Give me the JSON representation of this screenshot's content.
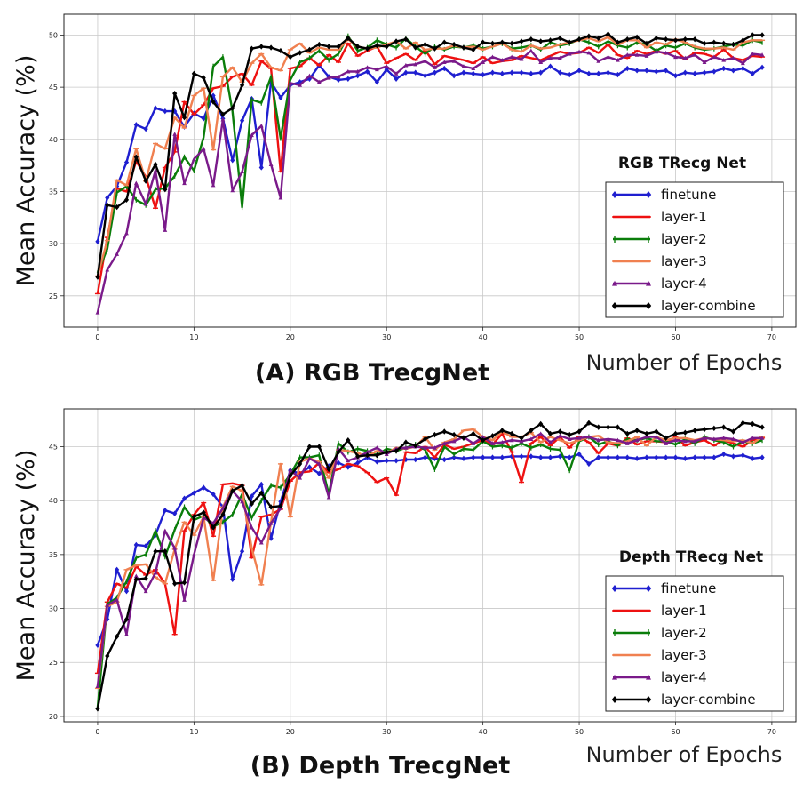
{
  "chart_data": [
    {
      "type": "line",
      "panel_title": "(A) RGB TrecgNet",
      "legend_title": "RGB TRecg Net",
      "ylabel": "Mean Accuracy (%)",
      "xlabel": "Number of Epochs",
      "xlim": [
        -3.5,
        72.5
      ],
      "ylim": [
        22,
        52
      ],
      "xticks": [
        0,
        10,
        20,
        30,
        40,
        50,
        60,
        70
      ],
      "yticks": [
        25,
        30,
        35,
        40,
        45,
        50
      ],
      "grid": true,
      "legend_position": "lower-right",
      "series": [
        {
          "name": "finetune",
          "color": "#1f1fd0",
          "marker": "diamond",
          "values": [
            30.2,
            34.4,
            35.5,
            37.8,
            41.4,
            41.0,
            43.0,
            42.7,
            42.7,
            41.2,
            42.5,
            42.0,
            44.2,
            42.0,
            38.0,
            41.8,
            43.9,
            37.3,
            45.5,
            44.0,
            45.2,
            45.5,
            45.8,
            47.1,
            46.0,
            45.7,
            45.8,
            46.1,
            46.5,
            45.5,
            46.7,
            45.8,
            46.4,
            46.4,
            46.1,
            46.4,
            46.8,
            46.1,
            46.4,
            46.3,
            46.2,
            46.4,
            46.3,
            46.4,
            46.4,
            46.3,
            46.4,
            47.0,
            46.4,
            46.2,
            46.6,
            46.3,
            46.3,
            46.4,
            46.2,
            46.8,
            46.6,
            46.6,
            46.5,
            46.6,
            46.1,
            46.4,
            46.3,
            46.4,
            46.5,
            46.8,
            46.6,
            46.8,
            46.3,
            46.9
          ]
        },
        {
          "name": "layer-1",
          "color": "#ee1111",
          "marker": "hline",
          "values": [
            25.2,
            30.6,
            35.3,
            35.0,
            37.9,
            36.4,
            33.4,
            37.3,
            38.8,
            43.6,
            42.4,
            43.3,
            44.9,
            45.1,
            46.0,
            46.3,
            45.2,
            47.5,
            46.8,
            36.9,
            46.8,
            47.0,
            47.8,
            47.1,
            48.1,
            47.4,
            49.2,
            48.0,
            48.5,
            48.9,
            47.3,
            47.8,
            48.2,
            47.6,
            48.6,
            47.2,
            48.0,
            47.8,
            47.6,
            47.3,
            47.9,
            47.3,
            47.5,
            47.6,
            48.0,
            47.8,
            47.6,
            48.0,
            48.4,
            48.2,
            48.3,
            48.8,
            48.3,
            49.1,
            48.1,
            47.8,
            48.5,
            48.2,
            48.5,
            48.2,
            48.5,
            47.7,
            48.3,
            48.2,
            47.9,
            48.6,
            47.8,
            47.6,
            48.0,
            47.9
          ]
        },
        {
          "name": "layer-2",
          "color": "#0a7d0a",
          "marker": "vline",
          "values": [
            27.2,
            29.5,
            34.9,
            35.5,
            34.2,
            33.7,
            35.2,
            35.3,
            36.5,
            38.3,
            37.0,
            40.2,
            47.0,
            47.9,
            42.7,
            33.5,
            43.8,
            43.5,
            46.0,
            40.1,
            45.7,
            47.4,
            47.8,
            48.5,
            47.6,
            48.2,
            49.9,
            48.5,
            48.8,
            49.5,
            49.1,
            48.8,
            49.7,
            48.9,
            48.2,
            48.9,
            48.6,
            48.9,
            48.8,
            49.0,
            48.7,
            48.9,
            49.2,
            48.7,
            48.8,
            49.0,
            48.6,
            49.3,
            49.0,
            49.2,
            49.6,
            49.3,
            48.9,
            49.4,
            49.0,
            48.8,
            49.3,
            49.1,
            48.5,
            49.0,
            48.8,
            49.2,
            48.8,
            48.6,
            48.7,
            48.9,
            49.1,
            49.0,
            49.5,
            49.3
          ]
        },
        {
          "name": "layer-3",
          "color": "#f08050",
          "marker": "hline",
          "values": [
            26.9,
            30.3,
            36.1,
            35.6,
            39.1,
            36.0,
            39.6,
            39.1,
            42.1,
            41.1,
            44.2,
            44.9,
            39.0,
            46.0,
            46.9,
            45.5,
            47.3,
            48.2,
            46.9,
            46.6,
            48.6,
            49.2,
            48.3,
            48.8,
            48.6,
            48.6,
            49.6,
            48.9,
            48.7,
            48.8,
            49.1,
            49.4,
            48.7,
            49.3,
            48.6,
            48.7,
            48.7,
            49.0,
            48.8,
            48.9,
            48.6,
            48.9,
            49.2,
            48.6,
            48.4,
            49.0,
            48.7,
            48.8,
            49.1,
            49.3,
            49.5,
            49.7,
            49.4,
            49.8,
            49.1,
            49.5,
            49.5,
            48.8,
            49.3,
            49.1,
            49.6,
            49.3,
            48.9,
            48.7,
            48.7,
            48.8,
            48.6,
            49.3,
            49.5,
            49.5
          ]
        },
        {
          "name": "layer-4",
          "color": "#7a1a8a",
          "marker": "triangle",
          "values": [
            23.4,
            27.5,
            29.0,
            31.0,
            35.8,
            33.8,
            37.0,
            31.3,
            40.5,
            35.8,
            38.1,
            39.1,
            35.6,
            41.9,
            35.1,
            36.9,
            40.4,
            41.3,
            37.6,
            34.4,
            45.4,
            45.2,
            46.1,
            45.5,
            45.9,
            46.0,
            46.5,
            46.5,
            46.9,
            46.7,
            47.0,
            46.3,
            47.1,
            47.2,
            47.5,
            46.9,
            47.4,
            47.5,
            47.0,
            46.8,
            47.4,
            47.9,
            47.6,
            47.9,
            47.7,
            48.5,
            47.4,
            47.8,
            47.8,
            48.2,
            48.4,
            48.3,
            47.5,
            47.9,
            47.6,
            48.1,
            48.1,
            48.0,
            48.4,
            48.3,
            47.9,
            47.8,
            48.1,
            47.4,
            47.9,
            47.6,
            47.8,
            47.3,
            48.2,
            48.1
          ]
        },
        {
          "name": "layer-combine",
          "color": "#000000",
          "marker": "diamond",
          "values": [
            26.8,
            33.7,
            33.5,
            34.2,
            38.3,
            36.0,
            37.6,
            35.2,
            44.4,
            42.1,
            46.3,
            45.9,
            43.6,
            42.4,
            43.0,
            45.2,
            48.7,
            48.9,
            48.8,
            48.5,
            47.9,
            48.3,
            48.6,
            49.1,
            48.9,
            48.9,
            49.7,
            48.9,
            48.7,
            49.0,
            48.9,
            49.4,
            49.6,
            48.8,
            49.1,
            48.7,
            49.3,
            49.1,
            48.8,
            48.6,
            49.3,
            49.2,
            49.3,
            49.2,
            49.4,
            49.6,
            49.4,
            49.5,
            49.7,
            49.3,
            49.6,
            49.9,
            49.7,
            50.1,
            49.3,
            49.6,
            49.8,
            49.2,
            49.7,
            49.6,
            49.5,
            49.6,
            49.6,
            49.2,
            49.3,
            49.2,
            49.1,
            49.5,
            50.0,
            50.0
          ]
        }
      ]
    },
    {
      "type": "line",
      "panel_title": "(B) Depth TrecgNet",
      "legend_title": "Depth TRecg Net",
      "ylabel": "Mean Accuracy (%)",
      "xlabel": "Number of Epochs",
      "xlim": [
        -3.5,
        72.5
      ],
      "ylim": [
        19.5,
        48.5
      ],
      "xticks": [
        0,
        10,
        20,
        30,
        40,
        50,
        60,
        70
      ],
      "yticks": [
        20,
        25,
        30,
        35,
        40,
        45
      ],
      "grid": true,
      "legend_position": "lower-right",
      "series": [
        {
          "name": "finetune",
          "color": "#1f1fd0",
          "marker": "diamond",
          "values": [
            26.6,
            29.0,
            33.6,
            31.6,
            35.9,
            35.8,
            36.8,
            39.1,
            38.8,
            40.2,
            40.7,
            41.2,
            40.6,
            39.4,
            32.7,
            35.3,
            40.4,
            41.5,
            36.5,
            39.9,
            42.8,
            42.5,
            43.1,
            42.5,
            43.2,
            43.5,
            43.1,
            43.5,
            44.0,
            43.6,
            43.7,
            43.7,
            43.8,
            43.8,
            44.0,
            43.9,
            43.8,
            44.0,
            43.9,
            44.0,
            44.0,
            44.0,
            44.0,
            44.1,
            44.1,
            44.1,
            44.0,
            44.0,
            44.1,
            44.0,
            44.3,
            43.4,
            44.0,
            44.0,
            44.0,
            44.0,
            43.9,
            44.0,
            44.0,
            44.0,
            44.0,
            43.9,
            44.0,
            44.0,
            44.0,
            44.3,
            44.1,
            44.2,
            43.9,
            44.0
          ]
        },
        {
          "name": "layer-1",
          "color": "#ee1111",
          "marker": "hline",
          "values": [
            24.0,
            30.6,
            32.3,
            31.9,
            33.9,
            33.1,
            33.6,
            32.3,
            27.6,
            37.2,
            38.7,
            39.8,
            36.7,
            41.5,
            41.6,
            41.4,
            34.7,
            38.5,
            38.7,
            39.2,
            41.8,
            42.6,
            42.7,
            43.5,
            42.6,
            42.9,
            43.4,
            43.2,
            42.6,
            41.7,
            42.1,
            40.5,
            44.5,
            44.4,
            45.0,
            44.0,
            45.2,
            44.8,
            45.0,
            45.3,
            45.6,
            45.2,
            46.2,
            44.5,
            41.7,
            45.3,
            45.9,
            45.1,
            45.9,
            44.9,
            45.9,
            45.4,
            44.4,
            45.3,
            45.1,
            45.8,
            45.2,
            45.5,
            45.5,
            45.4,
            45.9,
            45.1,
            45.4,
            45.6,
            45.1,
            45.6,
            45.3,
            45.0,
            45.6,
            45.8
          ]
        },
        {
          "name": "layer-2",
          "color": "#0a7d0a",
          "marker": "vline",
          "values": [
            20.8,
            30.4,
            31.0,
            32.5,
            34.7,
            35.0,
            37.2,
            34.8,
            37.3,
            39.4,
            38.2,
            38.6,
            37.6,
            38.0,
            38.7,
            40.6,
            38.4,
            40.0,
            41.4,
            41.2,
            42.4,
            44.0,
            44.0,
            44.2,
            40.6,
            45.3,
            44.5,
            44.8,
            44.6,
            44.2,
            44.8,
            44.6,
            44.9,
            45.2,
            44.7,
            42.9,
            45.0,
            44.3,
            44.8,
            44.7,
            45.5,
            45.0,
            45.1,
            44.9,
            45.3,
            44.9,
            45.2,
            44.8,
            44.7,
            42.8,
            45.5,
            45.9,
            45.2,
            45.5,
            45.1,
            45.7,
            45.6,
            45.8,
            45.5,
            45.5,
            45.2,
            45.7,
            45.3,
            45.9,
            45.6,
            45.4,
            45.0,
            45.5,
            45.3,
            45.6
          ]
        },
        {
          "name": "layer-3",
          "color": "#f08050",
          "marker": "hline",
          "values": [
            22.6,
            30.2,
            30.6,
            33.6,
            34.0,
            34.1,
            32.9,
            32.3,
            35.5,
            38.0,
            36.8,
            38.5,
            32.6,
            39.4,
            41.3,
            40.9,
            35.6,
            32.2,
            38.0,
            43.4,
            38.5,
            43.6,
            43.9,
            43.6,
            42.1,
            44.7,
            44.6,
            44.4,
            44.1,
            44.6,
            44.4,
            44.9,
            44.8,
            45.0,
            45.9,
            44.7,
            45.4,
            45.7,
            46.5,
            46.6,
            45.9,
            45.6,
            46.4,
            45.9,
            45.9,
            46.3,
            45.4,
            45.9,
            45.6,
            45.3,
            45.6,
            45.9,
            46.0,
            45.4,
            45.3,
            45.5,
            45.9,
            45.1,
            45.9,
            45.6,
            45.8,
            45.8,
            45.6,
            45.8,
            45.7,
            45.6,
            45.5,
            45.6,
            45.3,
            45.9
          ]
        },
        {
          "name": "layer-4",
          "color": "#7a1a8a",
          "marker": "triangle",
          "values": [
            22.8,
            30.3,
            30.8,
            27.6,
            33.0,
            31.6,
            33.3,
            37.2,
            35.6,
            30.8,
            35.0,
            38.4,
            37.9,
            39.3,
            40.9,
            39.9,
            37.5,
            36.1,
            37.9,
            39.3,
            42.8,
            42.1,
            43.9,
            43.4,
            40.3,
            44.8,
            43.7,
            44.0,
            44.5,
            44.9,
            44.3,
            44.8,
            44.9,
            45.0,
            44.9,
            44.9,
            45.3,
            45.5,
            45.9,
            45.3,
            45.9,
            45.3,
            45.4,
            45.6,
            45.5,
            45.7,
            46.2,
            45.4,
            46.0,
            45.7,
            45.8,
            45.9,
            45.6,
            45.7,
            45.6,
            45.3,
            45.6,
            45.9,
            45.9,
            45.3,
            45.6,
            45.5,
            45.5,
            45.8,
            45.7,
            45.8,
            45.7,
            45.4,
            45.8,
            45.8
          ]
        },
        {
          "name": "layer-combine",
          "color": "#000000",
          "marker": "diamond",
          "values": [
            20.7,
            25.6,
            27.4,
            29.0,
            32.7,
            32.8,
            35.3,
            35.3,
            32.3,
            32.4,
            38.5,
            38.9,
            37.5,
            38.7,
            40.9,
            41.4,
            39.7,
            40.7,
            39.4,
            39.5,
            42.3,
            43.4,
            45.0,
            45.0,
            42.9,
            44.5,
            45.6,
            44.1,
            44.2,
            44.2,
            44.5,
            44.6,
            45.4,
            45.1,
            45.7,
            46.1,
            46.4,
            46.1,
            45.8,
            46.2,
            45.6,
            46.0,
            46.5,
            46.2,
            45.8,
            46.5,
            47.1,
            46.2,
            46.4,
            46.1,
            46.4,
            47.2,
            46.8,
            46.8,
            46.8,
            46.2,
            46.5,
            46.2,
            46.4,
            45.8,
            46.2,
            46.3,
            46.5,
            46.6,
            46.7,
            46.8,
            46.4,
            47.2,
            47.1,
            46.8
          ]
        }
      ]
    }
  ]
}
